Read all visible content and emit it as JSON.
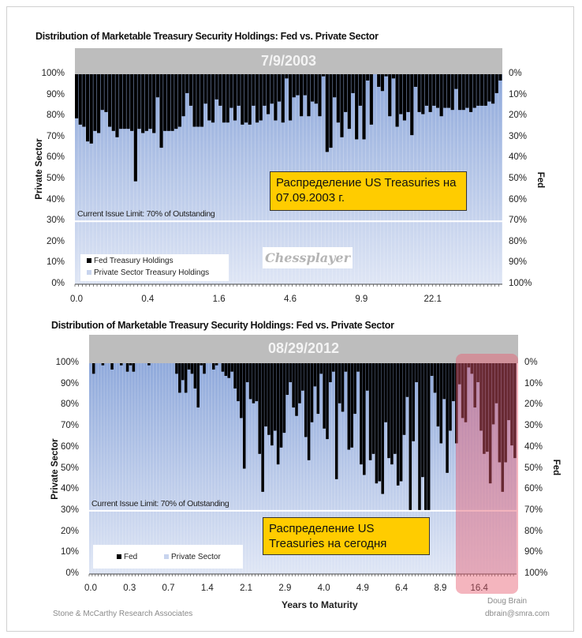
{
  "chart_data": [
    {
      "type": "bar",
      "title": "Distribution of Marketable Treasury Security Holdings:  Fed vs. Private Sector",
      "header": "7/9/2003",
      "ylabel": "Private Sector",
      "ylabel_right": "Fed",
      "xlabel": "",
      "ylim": [
        0,
        100
      ],
      "y_ticks": [
        "100%",
        "90%",
        "80%",
        "70%",
        "60%",
        "50%",
        "40%",
        "30%",
        "20%",
        "10%",
        "0%"
      ],
      "y_ticks_right": [
        "0%",
        "10%",
        "20%",
        "30%",
        "40%",
        "50%",
        "60%",
        "70%",
        "80%",
        "90%",
        "100%"
      ],
      "x_tick_labels": [
        "0.0",
        "0.4",
        "1.6",
        "4.6",
        "9.9",
        "22.1"
      ],
      "limit_line": {
        "value": 30,
        "label": "Current Issue Limit: 70% of Outstanding"
      },
      "legend": {
        "placement": "bottom-left",
        "entries": [
          "Fed Treasury Holdings",
          "Private Sector Treasury Holdings"
        ]
      },
      "annotation": "Распределение US Treasuries на 07.09.2003 г.",
      "watermark": "Chessplayer",
      "series": [
        {
          "name": "Private Sector Treasury Holdings (%)",
          "values": [
            79,
            76,
            75,
            68,
            67,
            73,
            72,
            83,
            82,
            75,
            73,
            70,
            74,
            74,
            74,
            73,
            49,
            74,
            72,
            73,
            74,
            72,
            89,
            65,
            73,
            73,
            73,
            74,
            75,
            80,
            91,
            85,
            75,
            75,
            75,
            86,
            78,
            77,
            88,
            85,
            77,
            77,
            84,
            78,
            85,
            76,
            77,
            76,
            85,
            77,
            78,
            85,
            81,
            86,
            78,
            87,
            77,
            98,
            78,
            89,
            90,
            80,
            90,
            80,
            87,
            86,
            80,
            99,
            63,
            65,
            89,
            77,
            70,
            82,
            74,
            91,
            69,
            85,
            69,
            97,
            76,
            100,
            94,
            92,
            99,
            80,
            98,
            75,
            81,
            78,
            82,
            71,
            94,
            82,
            81,
            85,
            82,
            85,
            84,
            80,
            84,
            84,
            83,
            93,
            83,
            83,
            84,
            82,
            84,
            85,
            85,
            85,
            87,
            86,
            91,
            97
          ]
        }
      ]
    },
    {
      "type": "bar",
      "title": "Distribution of Marketable Treasury Security Holdings:  Fed vs. Private Sector",
      "header": "08/29/2012",
      "ylabel": "Private Sector",
      "ylabel_right": "Fed",
      "xlabel": "Years to Maturity",
      "ylim": [
        0,
        100
      ],
      "y_ticks": [
        "100%",
        "90%",
        "80%",
        "70%",
        "60%",
        "50%",
        "40%",
        "30%",
        "20%",
        "10%",
        "0%"
      ],
      "y_ticks_right": [
        "0%",
        "10%",
        "20%",
        "30%",
        "40%",
        "50%",
        "60%",
        "70%",
        "80%",
        "90%",
        "100%"
      ],
      "x_tick_labels": [
        "0.0",
        "0.3",
        "0.7",
        "1.4",
        "2.1",
        "2.9",
        "4.0",
        "4.9",
        "6.4",
        "8.9",
        "16.4"
      ],
      "limit_line": {
        "value": 30,
        "label": "Current Issue Limit: 70% of Outstanding"
      },
      "legend": {
        "placement": "bottom-left",
        "entries": [
          "Fed",
          "Private Sector"
        ]
      },
      "annotation": "Распределение US Treasuries на сегодня",
      "highlight": "long maturities (16.4)",
      "series": [
        {
          "name": "Private Sector (%)",
          "values": [
            100,
            95,
            100,
            100,
            99,
            100,
            100,
            97,
            100,
            100,
            99,
            100,
            96,
            99,
            96,
            100,
            100,
            100,
            100,
            99,
            100,
            100,
            100,
            100,
            100,
            100,
            100,
            100,
            95,
            86,
            92,
            86,
            97,
            95,
            88,
            79,
            99,
            95,
            100,
            100,
            97,
            99,
            100,
            96,
            94,
            93,
            96,
            88,
            82,
            74,
            50,
            91,
            83,
            81,
            82,
            57,
            39,
            70,
            66,
            61,
            68,
            52,
            60,
            67,
            85,
            91,
            79,
            75,
            81,
            87,
            65,
            54,
            72,
            89,
            76,
            95,
            69,
            64,
            91,
            96,
            45,
            81,
            77,
            96,
            59,
            60,
            76,
            96,
            52,
            47,
            87,
            54,
            57,
            43,
            44,
            38,
            72,
            55,
            52,
            57,
            42,
            44,
            66,
            84,
            30,
            63,
            91,
            30,
            46,
            30,
            30,
            94,
            86,
            70,
            62,
            83,
            48,
            68,
            82,
            62,
            90,
            74,
            72,
            98,
            95,
            79,
            91,
            68,
            57,
            58,
            43,
            71,
            81,
            53,
            39,
            53,
            73,
            61,
            55
          ]
        }
      ]
    }
  ],
  "footer": {
    "source": "Stone & McCarthy Research Associates",
    "author": "Doug Brain",
    "email": "dbrain@smra.com"
  },
  "colors": {
    "fed": "#000000",
    "private_top": "#8fa9db",
    "private_bottom": "#dfe6f5",
    "header": "#bdbdbd",
    "note": "#ffcc00"
  }
}
